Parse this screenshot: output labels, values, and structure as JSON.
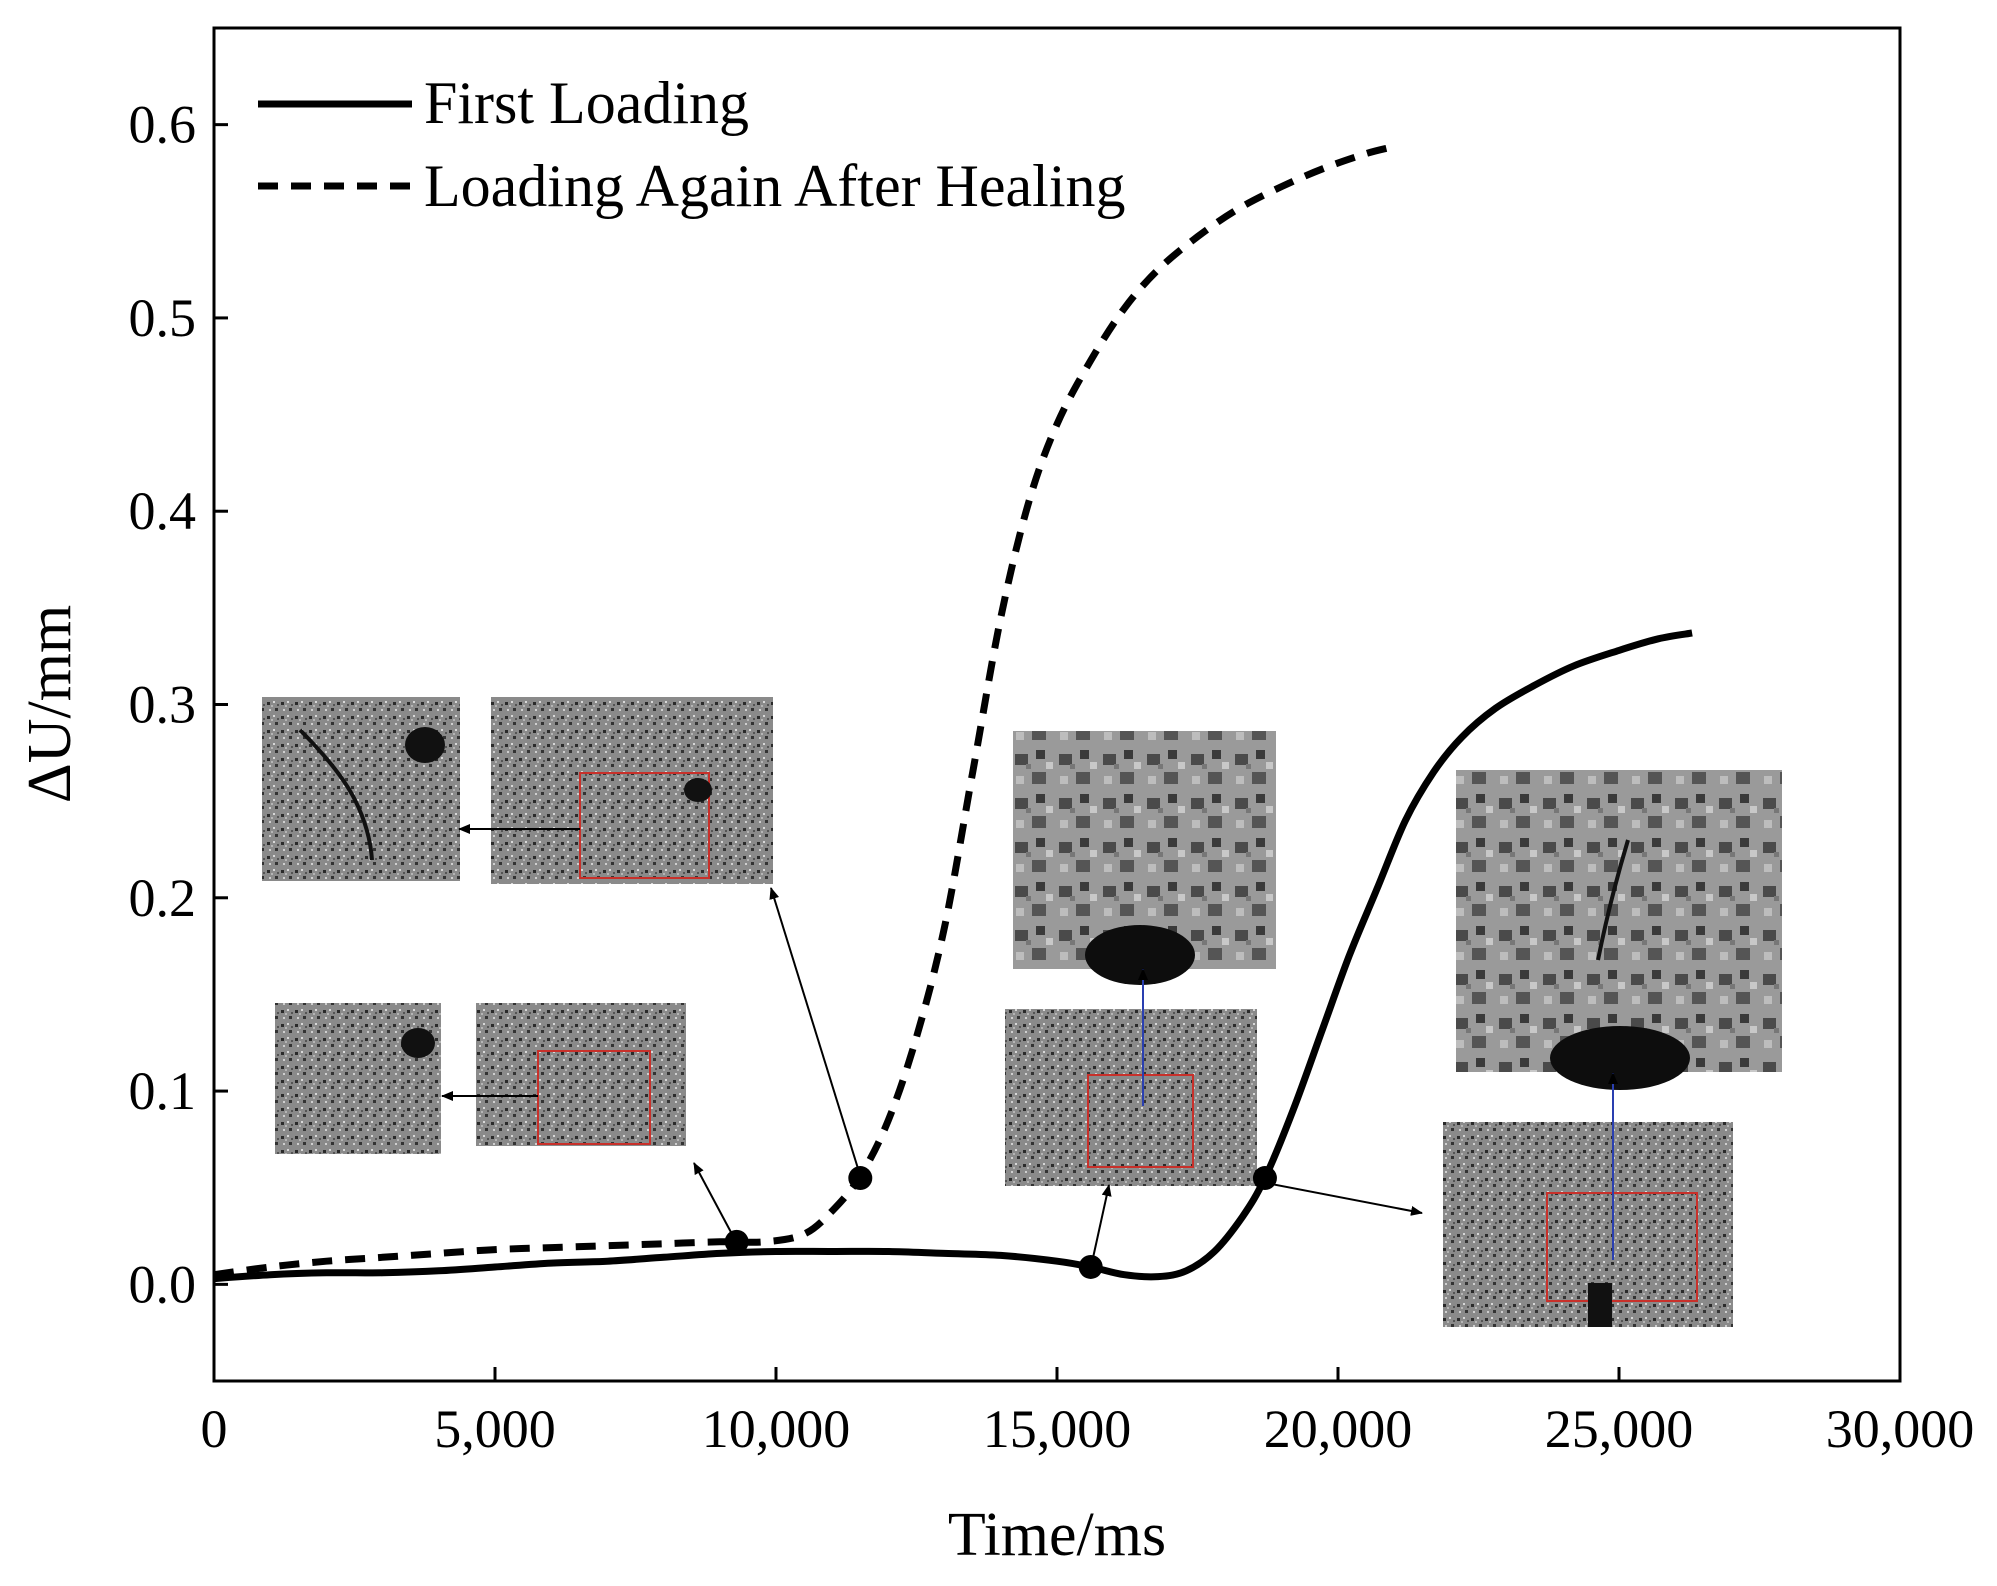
{
  "chart_data": {
    "type": "line",
    "xlabel": "Time/ms",
    "ylabel": "ΔU/mm",
    "xlim": [
      0,
      30000
    ],
    "ylim": [
      -0.05,
      0.65
    ],
    "x_ticks": [
      0,
      5000,
      10000,
      15000,
      20000,
      25000,
      30000
    ],
    "x_tick_labels": [
      "0",
      "5,000",
      "10,000",
      "15,000",
      "20,000",
      "25,000",
      "30,000"
    ],
    "y_ticks": [
      0.0,
      0.1,
      0.2,
      0.3,
      0.4,
      0.5,
      0.6
    ],
    "y_tick_labels": [
      "0.0",
      "0.1",
      "0.2",
      "0.3",
      "0.4",
      "0.5",
      "0.6"
    ],
    "grid": false,
    "legend_position": "top-left",
    "series": [
      {
        "name": "First Loading",
        "style": "solid",
        "color": "#000000",
        "points": [
          [
            0,
            0.003
          ],
          [
            1000,
            0.005
          ],
          [
            2000,
            0.006
          ],
          [
            3000,
            0.006
          ],
          [
            4000,
            0.007
          ],
          [
            5000,
            0.009
          ],
          [
            6000,
            0.011
          ],
          [
            7000,
            0.012
          ],
          [
            8000,
            0.014
          ],
          [
            9000,
            0.016
          ],
          [
            10000,
            0.017
          ],
          [
            11000,
            0.017
          ],
          [
            12000,
            0.017
          ],
          [
            13000,
            0.016
          ],
          [
            14000,
            0.015
          ],
          [
            15000,
            0.012
          ],
          [
            15600,
            0.009
          ],
          [
            16200,
            0.005
          ],
          [
            16800,
            0.004
          ],
          [
            17300,
            0.007
          ],
          [
            17800,
            0.017
          ],
          [
            18300,
            0.035
          ],
          [
            18700,
            0.055
          ],
          [
            19200,
            0.09
          ],
          [
            19700,
            0.13
          ],
          [
            20200,
            0.17
          ],
          [
            20700,
            0.205
          ],
          [
            21200,
            0.24
          ],
          [
            21700,
            0.265
          ],
          [
            22200,
            0.283
          ],
          [
            22800,
            0.298
          ],
          [
            23500,
            0.31
          ],
          [
            24200,
            0.32
          ],
          [
            25000,
            0.328
          ],
          [
            25700,
            0.334
          ],
          [
            26300,
            0.337
          ]
        ]
      },
      {
        "name": "Loading Again After Healing",
        "style": "dashed",
        "color": "#000000",
        "points": [
          [
            0,
            0.005
          ],
          [
            1000,
            0.009
          ],
          [
            2000,
            0.012
          ],
          [
            3000,
            0.014
          ],
          [
            4000,
            0.016
          ],
          [
            5000,
            0.018
          ],
          [
            6000,
            0.019
          ],
          [
            7000,
            0.02
          ],
          [
            8000,
            0.021
          ],
          [
            9000,
            0.022
          ],
          [
            9800,
            0.022
          ],
          [
            10500,
            0.026
          ],
          [
            11000,
            0.038
          ],
          [
            11500,
            0.056
          ],
          [
            12000,
            0.085
          ],
          [
            12500,
            0.128
          ],
          [
            13000,
            0.185
          ],
          [
            13500,
            0.265
          ],
          [
            14000,
            0.345
          ],
          [
            14500,
            0.405
          ],
          [
            15000,
            0.445
          ],
          [
            15600,
            0.478
          ],
          [
            16200,
            0.505
          ],
          [
            16800,
            0.525
          ],
          [
            17500,
            0.542
          ],
          [
            18200,
            0.556
          ],
          [
            19000,
            0.568
          ],
          [
            19800,
            0.578
          ],
          [
            20500,
            0.585
          ],
          [
            20900,
            0.588
          ]
        ]
      }
    ],
    "markers": [
      {
        "x": 9300,
        "y": 0.022
      },
      {
        "x": 11500,
        "y": 0.055
      },
      {
        "x": 15600,
        "y": 0.009
      },
      {
        "x": 18700,
        "y": 0.055
      }
    ]
  }
}
